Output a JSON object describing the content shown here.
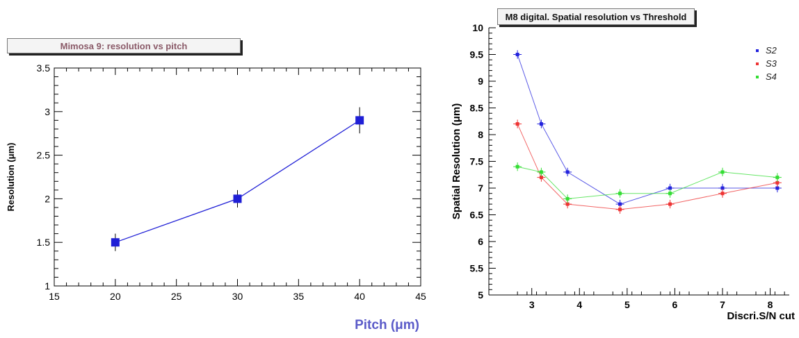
{
  "chart_data": [
    {
      "type": "line",
      "title": "Mimosa 9: resolution vs pitch",
      "xlabel": "Pitch (μm)",
      "ylabel": "Resolution (μm)",
      "xlim": [
        15,
        45
      ],
      "ylim": [
        1,
        3.5
      ],
      "x_ticks": [
        "15",
        "20",
        "25",
        "30",
        "35",
        "40",
        "45"
      ],
      "y_ticks": [
        "1",
        "1.5",
        "2",
        "2.5",
        "3",
        "3.5"
      ],
      "grid": false,
      "colors": {
        "series": "#1f1fd6",
        "xlabel": "#5a5ac8"
      },
      "series": [
        {
          "x": [
            20,
            30,
            40
          ],
          "y": [
            1.5,
            2.0,
            2.9
          ],
          "yerr": [
            0.1,
            0.1,
            0.15
          ]
        }
      ]
    },
    {
      "type": "line",
      "title": "M8 digital. Spatial resolution vs Threshold",
      "xlabel": "Discri.S/N cut",
      "ylabel": "Spatial Resolution (μm)",
      "xlim": [
        2.1,
        8.4
      ],
      "ylim": [
        5,
        10
      ],
      "x_ticks": [
        "3",
        "4",
        "5",
        "6",
        "7",
        "8"
      ],
      "y_ticks": [
        "5",
        "5.5",
        "6",
        "6.5",
        "7",
        "7.5",
        "8",
        "8.5",
        "9",
        "9.5",
        "10"
      ],
      "grid": false,
      "legend": "top-right",
      "x": [
        2.7,
        3.2,
        3.75,
        4.85,
        5.9,
        7.0,
        8.15
      ],
      "series": [
        {
          "name": "S2",
          "color": "#2222dd",
          "values": [
            9.5,
            8.2,
            7.3,
            6.7,
            7.0,
            7.0,
            7.0
          ],
          "yerr": 0.08
        },
        {
          "name": "S3",
          "color": "#ee3333",
          "values": [
            8.2,
            7.2,
            6.7,
            6.6,
            6.7,
            6.9,
            7.1
          ],
          "yerr": 0.08
        },
        {
          "name": "S4",
          "color": "#33dd33",
          "values": [
            7.4,
            7.3,
            6.8,
            6.9,
            6.9,
            7.3,
            7.2
          ],
          "yerr": 0.08
        }
      ]
    }
  ]
}
